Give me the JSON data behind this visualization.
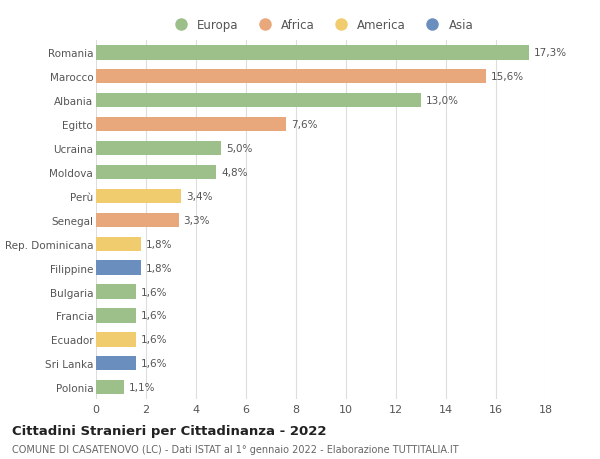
{
  "categories": [
    "Romania",
    "Marocco",
    "Albania",
    "Egitto",
    "Ucraina",
    "Moldova",
    "Perù",
    "Senegal",
    "Rep. Dominicana",
    "Filippine",
    "Bulgaria",
    "Francia",
    "Ecuador",
    "Sri Lanka",
    "Polonia"
  ],
  "values": [
    17.3,
    15.6,
    13.0,
    7.6,
    5.0,
    4.8,
    3.4,
    3.3,
    1.8,
    1.8,
    1.6,
    1.6,
    1.6,
    1.6,
    1.1
  ],
  "labels": [
    "17,3%",
    "15,6%",
    "13,0%",
    "7,6%",
    "5,0%",
    "4,8%",
    "3,4%",
    "3,3%",
    "1,8%",
    "1,8%",
    "1,6%",
    "1,6%",
    "1,6%",
    "1,6%",
    "1,1%"
  ],
  "continents": [
    "Europa",
    "Africa",
    "Europa",
    "Africa",
    "Europa",
    "Europa",
    "America",
    "Africa",
    "America",
    "Asia",
    "Europa",
    "Europa",
    "America",
    "Asia",
    "Europa"
  ],
  "colors": {
    "Europa": "#9dc08b",
    "Africa": "#e8a87c",
    "America": "#f0cc6e",
    "Asia": "#6a8fbf"
  },
  "legend_order": [
    "Europa",
    "Africa",
    "America",
    "Asia"
  ],
  "xlim": [
    0,
    18
  ],
  "xticks": [
    0,
    2,
    4,
    6,
    8,
    10,
    12,
    14,
    16,
    18
  ],
  "title": "Cittadini Stranieri per Cittadinanza - 2022",
  "subtitle": "COMUNE DI CASATENOVO (LC) - Dati ISTAT al 1° gennaio 2022 - Elaborazione TUTTITALIA.IT",
  "bg_color": "#ffffff",
  "grid_color": "#dddddd",
  "bar_height": 0.6,
  "label_fontsize": 7.5,
  "ytick_fontsize": 7.5,
  "xtick_fontsize": 8,
  "title_fontsize": 9.5,
  "subtitle_fontsize": 7
}
